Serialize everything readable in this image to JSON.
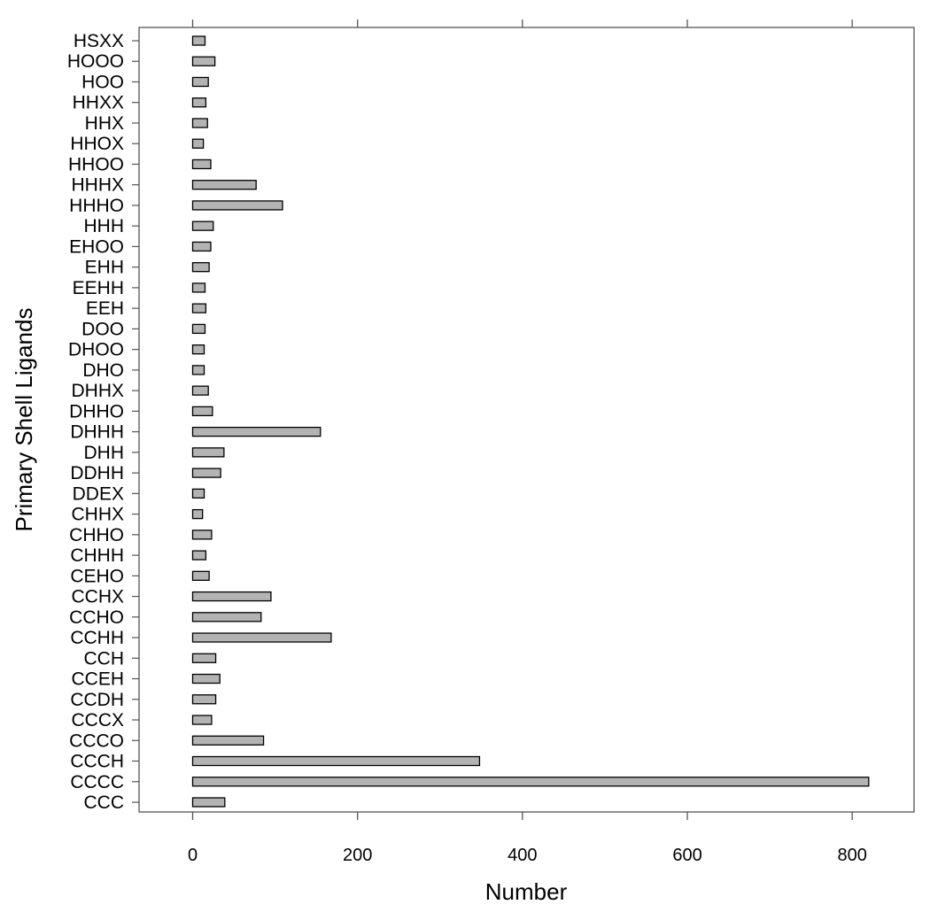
{
  "chart_data": {
    "type": "bar",
    "orientation": "horizontal",
    "xlabel": "Number",
    "ylabel": "Primary Shell Ligands",
    "xlim": [
      -65,
      875
    ],
    "xticks": [
      0,
      200,
      400,
      600,
      800
    ],
    "xtick_labels": [
      "0",
      "200",
      "400",
      "600",
      "800"
    ],
    "grid": false,
    "bar_color": "#b3b3b3",
    "categories": [
      "CCC",
      "CCCC",
      "CCCH",
      "CCCO",
      "CCCX",
      "CCDH",
      "CCEH",
      "CCH",
      "CCHH",
      "CCHO",
      "CCHX",
      "CEHO",
      "CHHH",
      "CHHO",
      "CHHX",
      "DDEX",
      "DDHH",
      "DHH",
      "DHHH",
      "DHHO",
      "DHHX",
      "DHO",
      "DHOO",
      "DOO",
      "EEH",
      "EEHH",
      "EHH",
      "EHOO",
      "HHH",
      "HHHO",
      "HHHX",
      "HHOO",
      "HHOX",
      "HHX",
      "HHXX",
      "HOO",
      "HOOO",
      "HSXX"
    ],
    "values": [
      39,
      820,
      348,
      86,
      23,
      28,
      33,
      28,
      168,
      83,
      95,
      20,
      16,
      23,
      12,
      14,
      34,
      38,
      155,
      24,
      19,
      14,
      14,
      15,
      16,
      15,
      20,
      22,
      25,
      109,
      77,
      22,
      13,
      18,
      16,
      19,
      27,
      15
    ]
  }
}
